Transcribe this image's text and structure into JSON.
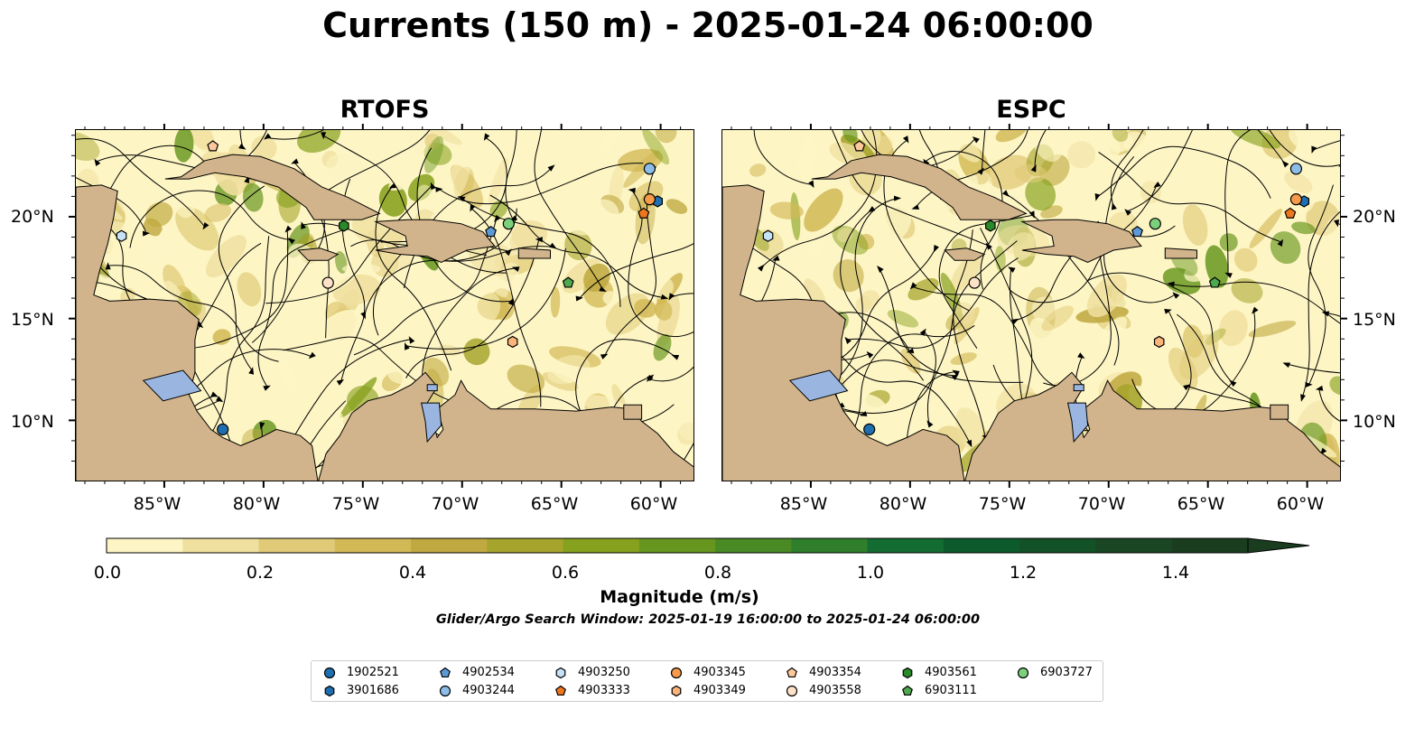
{
  "title": "Currents (150 m) - 2025-01-24 06:00:00",
  "panels": [
    {
      "title": "RTOFS"
    },
    {
      "title": "ESPC"
    }
  ],
  "axes": {
    "x_ticks": [
      "85°W",
      "80°W",
      "75°W",
      "70°W",
      "65°W",
      "60°W"
    ],
    "y_ticks": [
      "20°N",
      "15°N",
      "10°N"
    ]
  },
  "map_extent": {
    "lon_min": -89.5,
    "lon_max": -58.3,
    "lat_min": 7.0,
    "lat_max": 24.3
  },
  "colorbar": {
    "label": "Magnitude (m/s)",
    "ticks": [
      "0.0",
      "0.2",
      "0.4",
      "0.6",
      "0.8",
      "1.0",
      "1.2",
      "1.4"
    ],
    "range": [
      0.0,
      1.5
    ],
    "extend": "max",
    "colors": [
      "#fdf5c4",
      "#f0e0a0",
      "#e0ca78",
      "#d2b956",
      "#bfa940",
      "#a6a42c",
      "#86a11e",
      "#67961e",
      "#4a8a24",
      "#2f7f2c",
      "#136c31",
      "#0d5a2c",
      "#135126",
      "#1a4623",
      "#1a3d1f"
    ]
  },
  "search_window": "Glider/Argo Search Window: 2025-01-19 16:00:00 to 2025-01-24 06:00:00",
  "colors": {
    "land": "#d2b48c",
    "water": "#9ab6e0",
    "coast": "#000000"
  },
  "legend": [
    {
      "id": "1902521",
      "marker": "circle",
      "color": "#1f6fb0"
    },
    {
      "id": "3901686",
      "marker": "hexagon",
      "color": "#1f6fb0"
    },
    {
      "id": "4902534",
      "marker": "pentagon",
      "color": "#5c9ad6"
    },
    {
      "id": "4903244",
      "marker": "circle",
      "color": "#8cbde8"
    },
    {
      "id": "4903250",
      "marker": "hexagon",
      "color": "#c6e2f6"
    },
    {
      "id": "4903333",
      "marker": "pentagon",
      "color": "#f0761e"
    },
    {
      "id": "4903345",
      "marker": "circle",
      "color": "#f79a4a"
    },
    {
      "id": "4903349",
      "marker": "hexagon",
      "color": "#fbb47a"
    },
    {
      "id": "4903354",
      "marker": "pentagon",
      "color": "#fdc99c"
    },
    {
      "id": "4903558",
      "marker": "circle",
      "color": "#fde2c8"
    },
    {
      "id": "4903561",
      "marker": "hexagon",
      "color": "#2a8a2a"
    },
    {
      "id": "6903111",
      "marker": "pentagon",
      "color": "#4ea84e"
    },
    {
      "id": "6903727",
      "marker": "circle",
      "color": "#7cd07c"
    }
  ],
  "floats": [
    {
      "id": "1902521",
      "lon": -82.1,
      "lat": 9.6
    },
    {
      "id": "3901686",
      "lon": -60.2,
      "lat": 20.8
    },
    {
      "id": "4902534",
      "lon": -68.6,
      "lat": 19.3
    },
    {
      "id": "4903244",
      "lon": -60.6,
      "lat": 22.4
    },
    {
      "id": "4903250",
      "lon": -87.2,
      "lat": 19.1
    },
    {
      "id": "4903333",
      "lon": -60.9,
      "lat": 20.2
    },
    {
      "id": "4903345",
      "lon": -60.6,
      "lat": 20.9
    },
    {
      "id": "4903349",
      "lon": -67.5,
      "lat": 13.9
    },
    {
      "id": "4903354",
      "lon": -82.6,
      "lat": 23.5
    },
    {
      "id": "4903558",
      "lon": -76.8,
      "lat": 16.8
    },
    {
      "id": "4903561",
      "lon": -76.0,
      "lat": 19.6
    },
    {
      "id": "6903111",
      "lon": -64.7,
      "lat": 16.8
    },
    {
      "id": "6903727",
      "lon": -67.7,
      "lat": 19.7
    }
  ]
}
